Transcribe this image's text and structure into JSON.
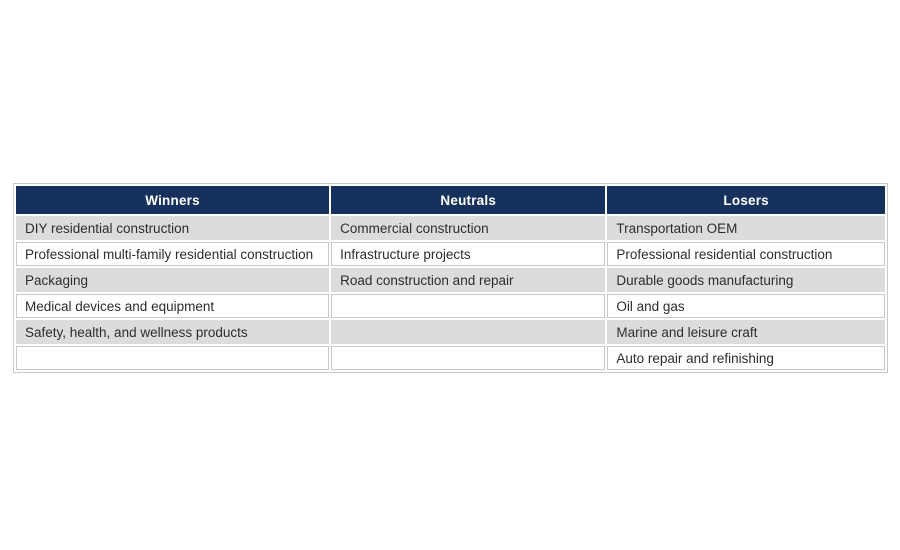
{
  "chart_data": {
    "type": "table",
    "title": "",
    "headers": [
      "Winners",
      "Neutrals",
      "Losers"
    ],
    "rows": [
      [
        "DIY residential construction",
        "Commercial construction",
        "Transportation OEM"
      ],
      [
        "Professional multi-family residential construction",
        "Infrastructure projects",
        "Professional residential construction"
      ],
      [
        "Packaging",
        "Road construction and repair",
        "Durable goods manufacturing"
      ],
      [
        "Medical devices and equipment",
        "",
        "Oil and gas"
      ],
      [
        "Safety, health, and wellness products",
        "",
        "Marine and leisure craft"
      ],
      [
        "",
        "",
        "Auto repair and refinishing"
      ]
    ],
    "columns_by_category": {
      "winners": [
        "DIY residential construction",
        "Professional multi-family residential construction",
        "Packaging",
        "Medical devices and equipment",
        "Safety, health, and wellness products"
      ],
      "neutrals": [
        "Commercial construction",
        "Infrastructure projects",
        "Road construction and repair"
      ],
      "losers": [
        "Transportation OEM",
        "Professional residential construction",
        "Durable goods manufacturing",
        "Oil and gas",
        "Marine and leisure craft",
        "Auto repair and refinishing"
      ]
    },
    "layout_hints": {
      "header_style": "navy band, white bold centered text",
      "row_striping": "odd rows gray, even rows white",
      "grid": "2px white gaps between cells, thin gray border around white cells and table"
    }
  },
  "colors": {
    "header_bg": "#16325c",
    "header_text": "#ffffff",
    "row_alt_bg": "#dcdcdc",
    "row_bg": "#ffffff",
    "cell_border": "#c8c8c8",
    "body_text": "#2d2d2d",
    "page_bg": "#ffffff"
  }
}
